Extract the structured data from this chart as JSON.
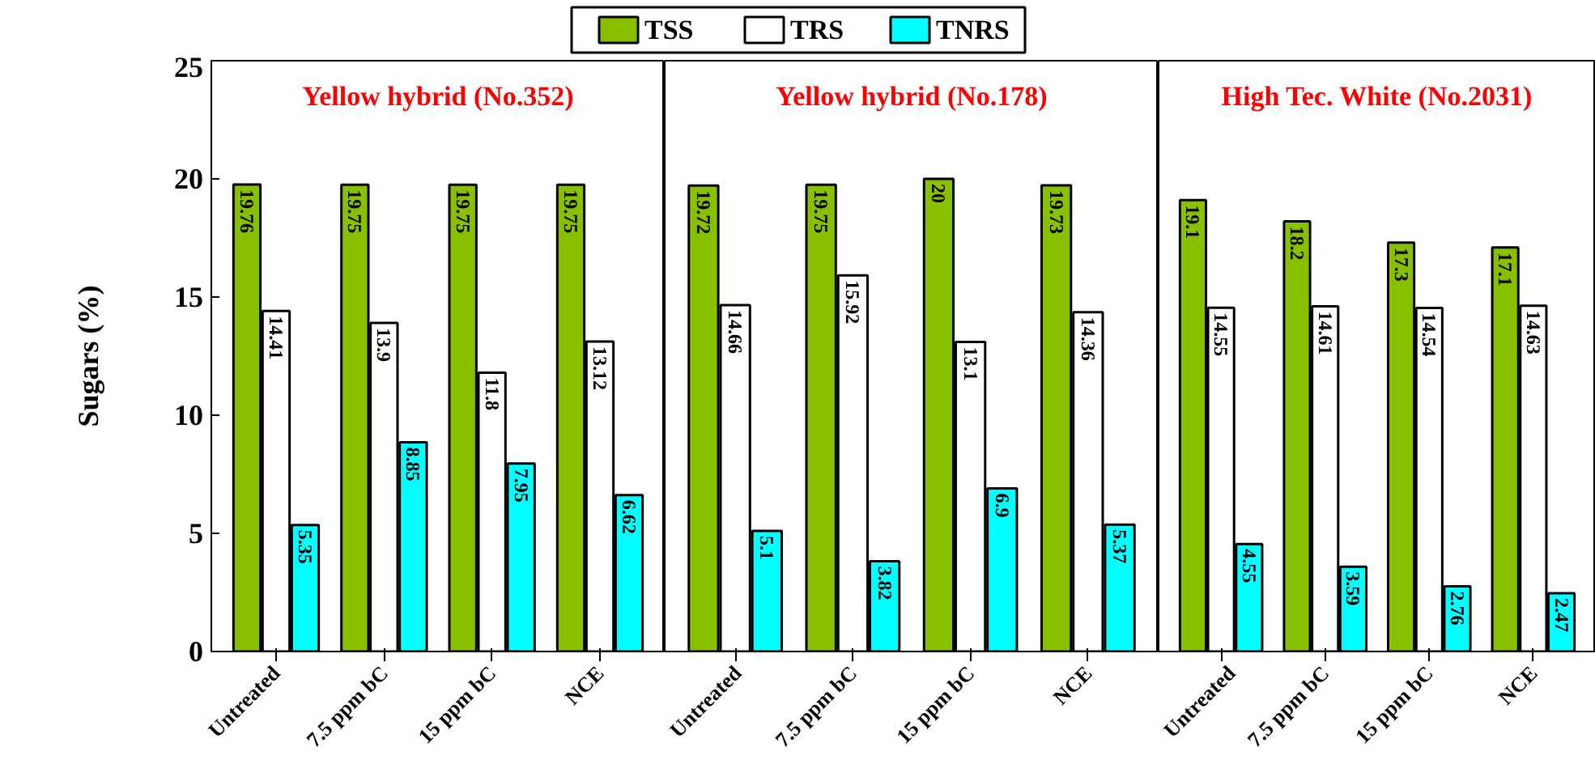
{
  "chart_data": [
    {
      "type": "bar",
      "title": "Yellow hybrid (No.352)",
      "ylabel": "Sugars (%)",
      "categories": [
        "Untreated",
        "7.5 ppm bC",
        "15 ppm bC",
        "NCE"
      ],
      "ylim": [
        0,
        25
      ],
      "yticks": [
        0,
        5,
        10,
        15,
        20,
        25
      ],
      "legend": "top",
      "data_labels": true,
      "grid": false,
      "series": [
        {
          "name": "TSS",
          "color": "#88c000",
          "values": [
            19.76,
            19.75,
            19.75,
            19.75
          ]
        },
        {
          "name": "TRS",
          "color": "#ffffff",
          "values": [
            14.41,
            13.9,
            11.8,
            13.12
          ]
        },
        {
          "name": "TNRS",
          "color": "#00ffff",
          "values": [
            5.35,
            8.85,
            7.95,
            6.62
          ]
        }
      ]
    },
    {
      "type": "bar",
      "title": "Yellow hybrid (No.178)",
      "categories": [
        "Untreated",
        "7.5 ppm bC",
        "15 ppm bC",
        "NCE"
      ],
      "ylim": [
        0,
        25
      ],
      "tick_labels": "x",
      "data_labels": true,
      "grid": false,
      "series": [
        {
          "color": "#88c000",
          "values": [
            19.72,
            19.75,
            20,
            19.73
          ]
        },
        {
          "color": "#ffffff",
          "values": [
            14.66,
            15.92,
            13.1,
            14.36
          ]
        },
        {
          "color": "#00ffff",
          "values": [
            5.1,
            3.82,
            6.9,
            5.37
          ]
        }
      ]
    },
    {
      "type": "bar",
      "title": "High Tec. White (No.2031)",
      "categories": [
        "Untreated",
        "7.5 ppm bC",
        "15 ppm bC",
        "NCE"
      ],
      "ylim": [
        0,
        25
      ],
      "tick_labels": "x",
      "data_labels": true,
      "grid": false,
      "series": [
        {
          "color": "#88c000",
          "values": [
            19.1,
            18.2,
            17.3,
            17.1
          ]
        },
        {
          "color": "#ffffff",
          "values": [
            14.55,
            14.61,
            14.54,
            14.63
          ]
        },
        {
          "color": "#00ffff",
          "values": [
            4.55,
            3.59,
            2.76,
            2.47
          ]
        }
      ]
    }
  ]
}
